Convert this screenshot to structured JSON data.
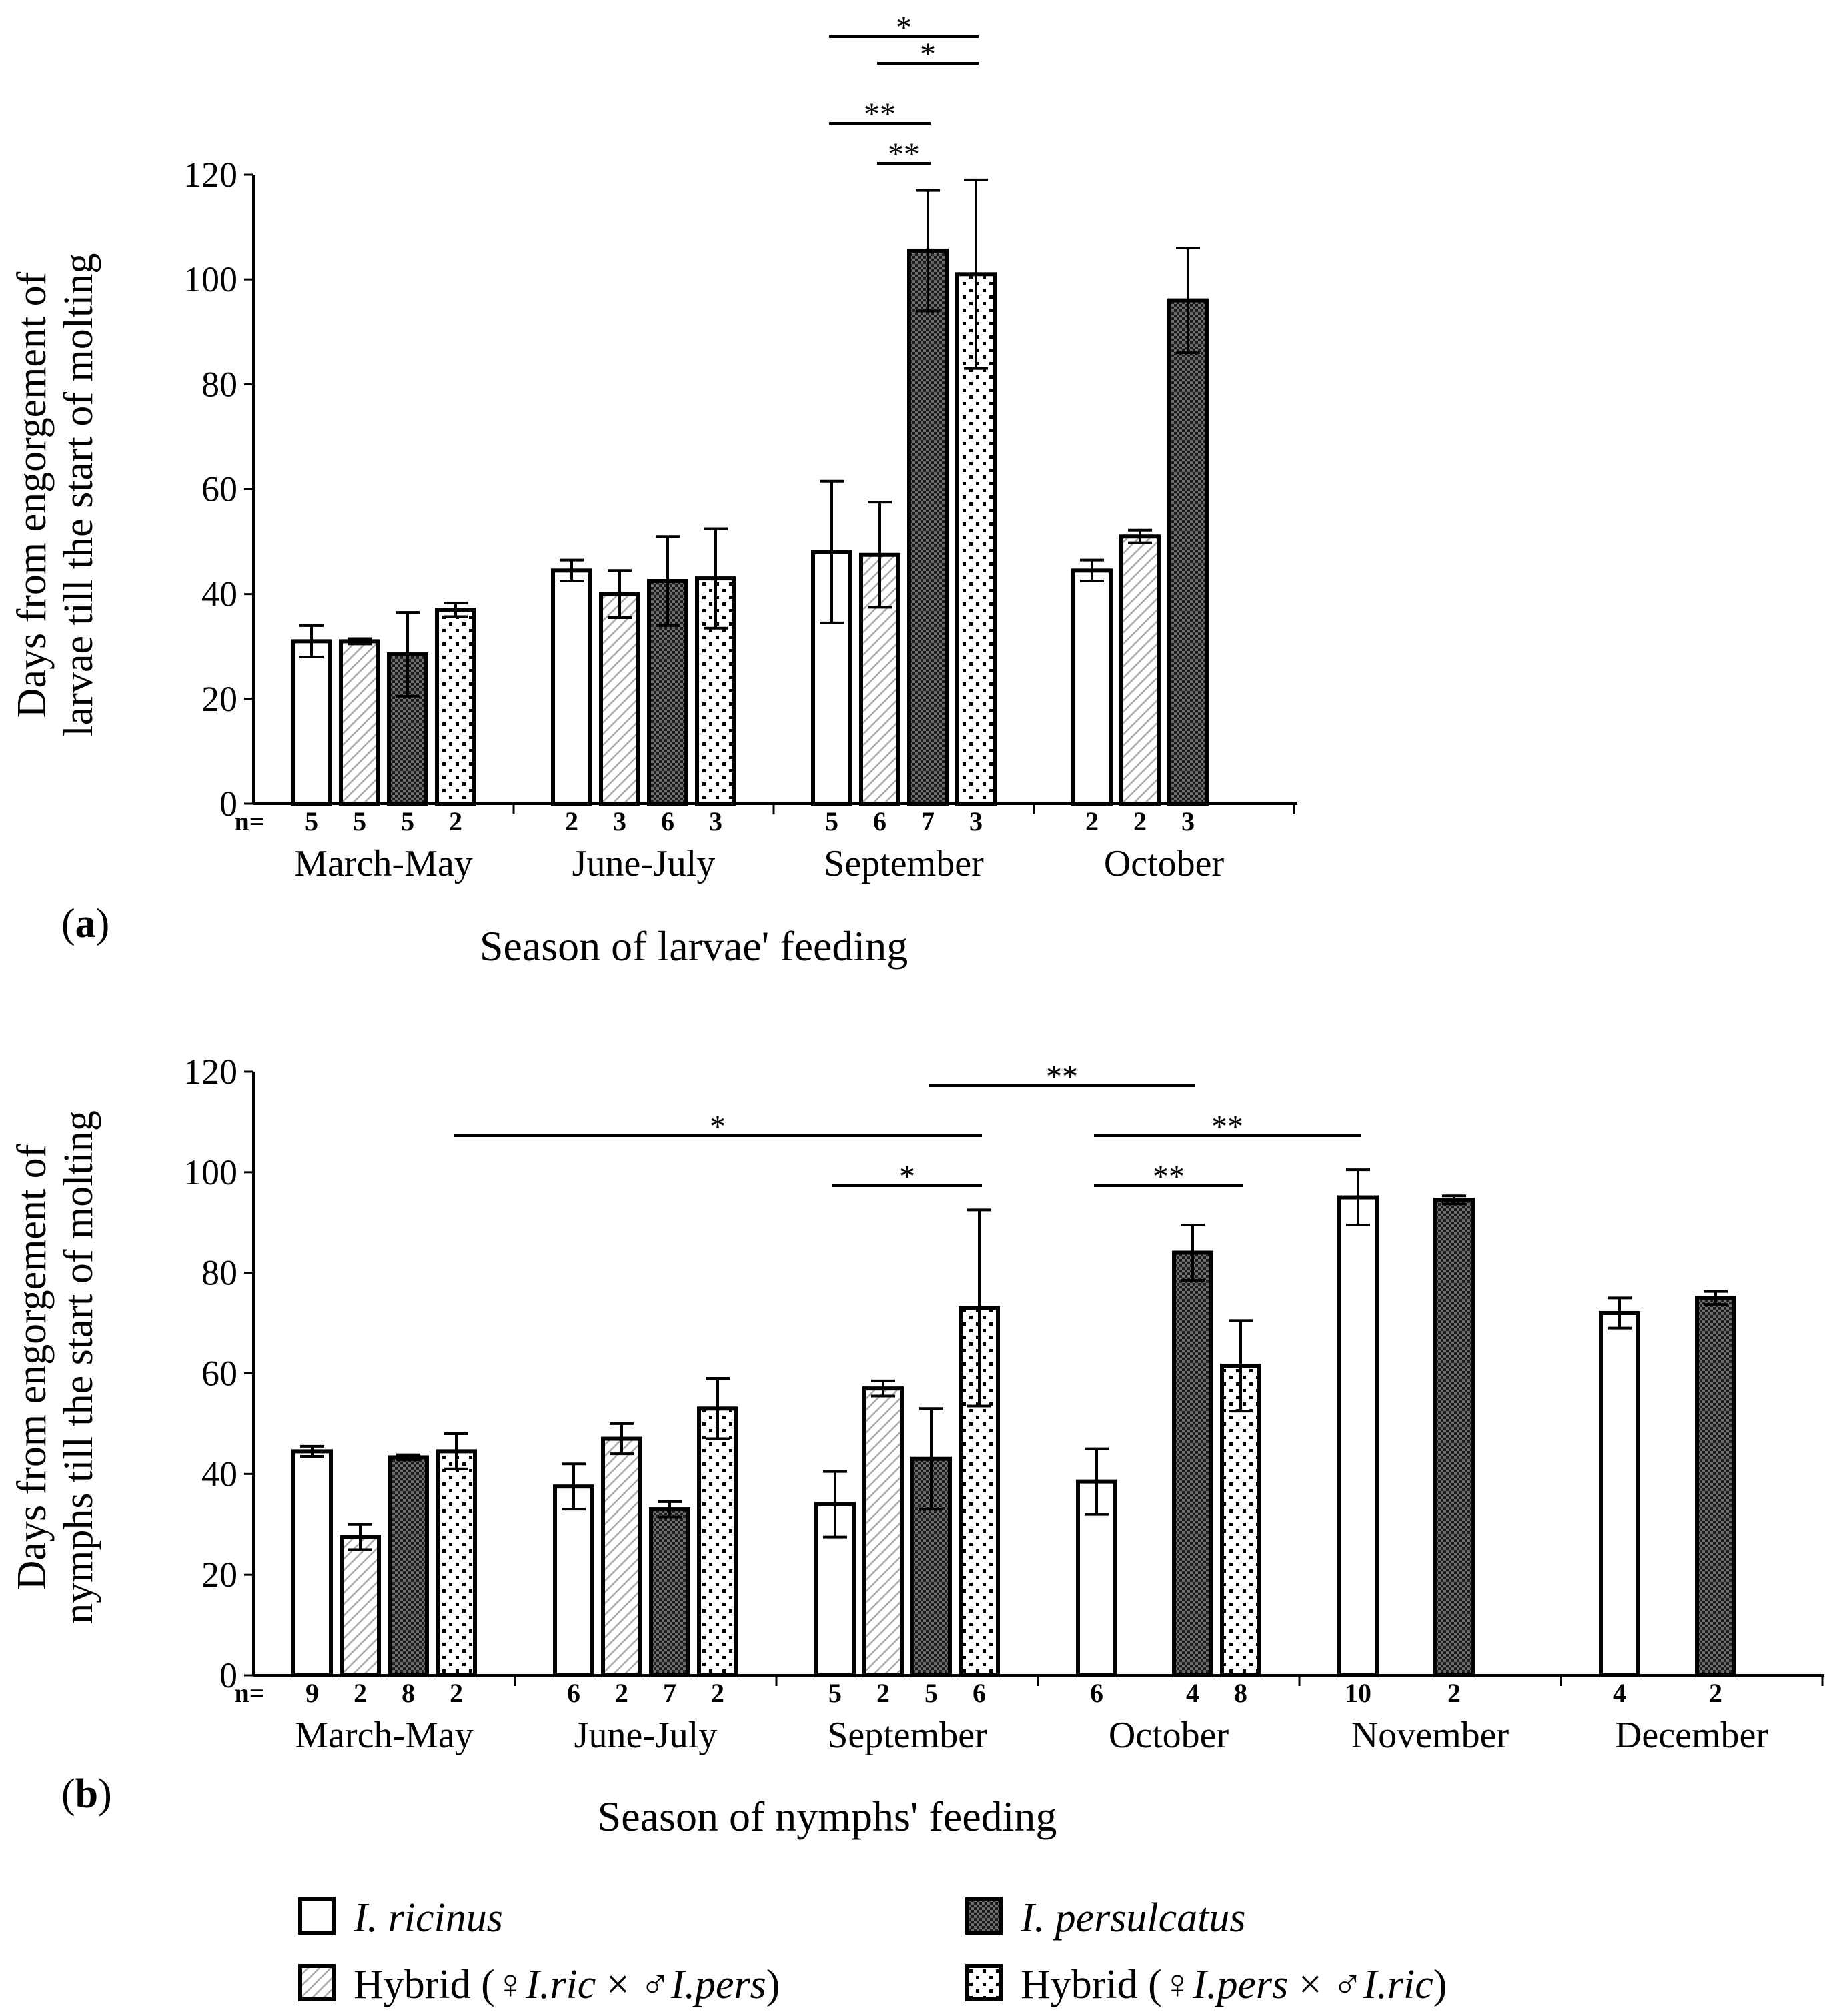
{
  "chart_data": [
    {
      "type": "bar",
      "panel_label": "(a)",
      "panel_letter": "a",
      "xlabel": "Season of larvae' feeding",
      "ylabel_line1": "Days from engorgement of",
      "ylabel_line2": "larvae till the start of molting",
      "ylim": [
        0,
        120
      ],
      "yticks": [
        "0",
        "20",
        "40",
        "60",
        "80",
        "100",
        "120"
      ],
      "n_prefix": "n=",
      "categories": [
        "March-May",
        "June-July",
        "September",
        "October"
      ],
      "series": [
        {
          "name": "I. ricinus",
          "values": [
            31,
            44.5,
            48,
            44.5
          ],
          "errors": [
            3,
            2,
            13.5,
            2
          ],
          "n": [
            "5",
            "2",
            "5",
            "2"
          ]
        },
        {
          "name": "Hybrid (♀I.ric × ♂I.pers)",
          "values": [
            31,
            40,
            47.5,
            51
          ],
          "errors": [
            0.5,
            4.5,
            10,
            1.2
          ],
          "n": [
            "5",
            "3",
            "6",
            "2"
          ]
        },
        {
          "name": "I. persulcatus",
          "values": [
            28.5,
            42.5,
            105.5,
            96
          ],
          "errors": [
            8,
            8.5,
            11.5,
            10
          ],
          "n": [
            "5",
            "6",
            "7",
            "3"
          ]
        },
        {
          "name": "Hybrid (♀I.pers × ♂I.ric)",
          "values": [
            37,
            43,
            101,
            null
          ],
          "errors": [
            1.3,
            9.5,
            18,
            null
          ],
          "n": [
            "2",
            "3",
            "3",
            ""
          ]
        }
      ],
      "significance": [
        {
          "cat": 2,
          "from": 0,
          "to": 3,
          "label": "*"
        },
        {
          "cat": 2,
          "from": 1,
          "to": 3,
          "label": "*"
        },
        {
          "cat": 2,
          "from": 0,
          "to": 2,
          "label": "**"
        },
        {
          "cat": 2,
          "from": 1,
          "to": 2,
          "label": "**"
        }
      ]
    },
    {
      "type": "bar",
      "panel_label": "(b)",
      "panel_letter": "b",
      "xlabel": "Season of nymphs' feeding",
      "ylabel_line1": "Days from engorgement of",
      "ylabel_line2": "nymphs till the start of molting",
      "ylim": [
        0,
        120
      ],
      "yticks": [
        "0",
        "20",
        "40",
        "60",
        "80",
        "100",
        "120"
      ],
      "n_prefix": "n=",
      "categories": [
        "March-May",
        "June-July",
        "September",
        "October",
        "November",
        "December"
      ],
      "series": [
        {
          "name": "I. ricinus",
          "values": [
            44.5,
            37.5,
            34,
            38.5,
            95,
            72
          ],
          "errors": [
            1,
            4.5,
            6.5,
            6.5,
            5.5,
            3
          ],
          "n": [
            "9",
            "6",
            "5",
            "6",
            "10",
            "4"
          ]
        },
        {
          "name": "Hybrid (♀I.ric × ♂I.pers)",
          "values": [
            27.5,
            47,
            57,
            null,
            null,
            null
          ],
          "errors": [
            2.5,
            3,
            1.5,
            null,
            null,
            null
          ],
          "n": [
            "2",
            "2",
            "2",
            "",
            "",
            ""
          ]
        },
        {
          "name": "I. persulcatus",
          "values": [
            43.3,
            33,
            43,
            84,
            94.5,
            75
          ],
          "errors": [
            0.5,
            1.5,
            10,
            5.5,
            0.8,
            1.3
          ],
          "n": [
            "8",
            "7",
            "5",
            "4",
            "2",
            "2"
          ]
        },
        {
          "name": "Hybrid (♀I.pers × ♂I.ric)",
          "values": [
            44.5,
            53,
            73,
            61.5,
            null,
            null
          ],
          "errors": [
            3.5,
            6,
            19.5,
            9,
            null,
            null
          ],
          "n": [
            "2",
            "2",
            "6",
            "8",
            "",
            ""
          ]
        }
      ],
      "significance": [
        {
          "label": "**",
          "cat_a": 2,
          "s_a": 2,
          "cat_b": 3,
          "s_b": 2
        },
        {
          "label": "*",
          "cat_a": 0,
          "s_a": 3,
          "cat_b": 2,
          "s_b": 3
        },
        {
          "label": "**",
          "cat_a": 3,
          "s_a": 0,
          "cat_b": 4,
          "s_b": 0
        },
        {
          "label": "*",
          "cat_a": 2,
          "s_a": 0,
          "cat_b": 2,
          "s_b": 3
        },
        {
          "label": "**",
          "cat_a": 3,
          "s_a": 0,
          "cat_b": 3,
          "s_b": 3
        }
      ]
    }
  ],
  "legend": {
    "ricinus": {
      "name": "I. ricinus"
    },
    "hybrid1": {
      "prefix": "Hybrid (",
      "female": "♀",
      "female_species": "I.ric",
      "times": " × ",
      "male": "♂",
      "male_species": "I.pers",
      "suffix": ")"
    },
    "persulcatus": {
      "name": "I. persulcatus"
    },
    "hybrid2": {
      "prefix": "Hybrid (",
      "female": "♀",
      "female_species": "I.pers",
      "times": " × ",
      "male": "♂",
      "male_species": "I.ric",
      "suffix": ")"
    }
  }
}
